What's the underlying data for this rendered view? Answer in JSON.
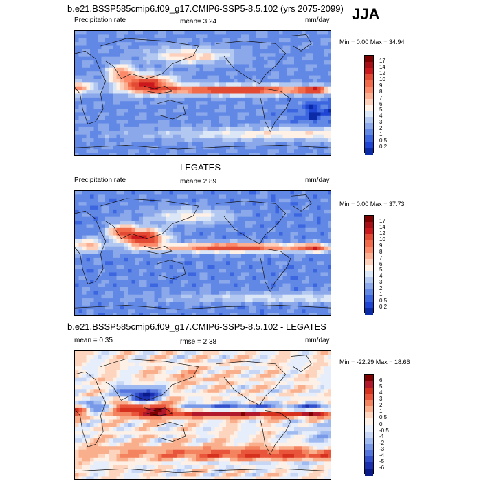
{
  "season": "JJA",
  "panels": [
    {
      "title": "b.e21.BSSP585cmip6.f09_g17.CMIP6-SSP5-8.5.102 (yrs 2075-2099)",
      "left_label": "Precipitation rate",
      "center_label": "mean=  3.24",
      "right_label": "mm/day",
      "minmax": "Min =   0.00 Max =  34.94",
      "colorbar": {
        "labels": [
          "17",
          "14",
          "12",
          "10",
          "9",
          "8",
          "7",
          "6",
          "5",
          "4",
          "3",
          "2",
          "1",
          "0.5",
          "0.2"
        ],
        "colors": [
          "#7f0000",
          "#a50f15",
          "#cb181d",
          "#e34a33",
          "#f16a4a",
          "#fb8a6a",
          "#fcae91",
          "#fdd0bc",
          "#fff1e6",
          "#dbe6f7",
          "#b3c8f0",
          "#8aa8ea",
          "#6288e6",
          "#3c66e0",
          "#1f45d4",
          "#0a2aa8"
        ]
      },
      "field": "precip_model"
    },
    {
      "title": "LEGATES",
      "left_label": "Precipitation rate",
      "center_label": "mean=  2.89",
      "right_label": "mm/day",
      "minmax": "Min =   0.00 Max =  37.73",
      "colorbar": {
        "labels": [
          "17",
          "14",
          "12",
          "10",
          "9",
          "8",
          "7",
          "6",
          "5",
          "4",
          "3",
          "2",
          "1",
          "0.5",
          "0.2"
        ],
        "colors": [
          "#7f0000",
          "#a50f15",
          "#cb181d",
          "#e34a33",
          "#f16a4a",
          "#fb8a6a",
          "#fcae91",
          "#fdd0bc",
          "#fff1e6",
          "#dbe6f7",
          "#b3c8f0",
          "#8aa8ea",
          "#6288e6",
          "#3c66e0",
          "#1f45d4",
          "#0a2aa8"
        ]
      },
      "field": "precip_obs"
    },
    {
      "title": "b.e21.BSSP585cmip6.f09_g17.CMIP6-SSP5-8.5.102 - LEGATES",
      "left_label": "mean =   0.35",
      "center_label": "rmse =  2.38",
      "right_label": "mm/day",
      "minmax": "Min = -22.29 Max =  18.66",
      "colorbar": {
        "labels": [
          "6",
          "5",
          "4",
          "3",
          "2",
          "1",
          "0.5",
          "0",
          "-0.5",
          "-1",
          "-2",
          "-3",
          "-4",
          "-5",
          "-6"
        ],
        "colors": [
          "#7f0000",
          "#b2182b",
          "#d6301f",
          "#e8553a",
          "#f4845f",
          "#f9ae8c",
          "#fdd5bf",
          "#fdf0e6",
          "#e6eefb",
          "#c6d6f4",
          "#9fbaf0",
          "#7898e8",
          "#5474de",
          "#3350cc",
          "#1a30b0",
          "#0a1a88"
        ]
      },
      "field": "precip_diff"
    }
  ],
  "chart_data": [
    {
      "type": "heatmap",
      "title": "b.e21.BSSP585cmip6.f09_g17.CMIP6-SSP5-8.5.102 (yrs 2075-2099)",
      "variable": "Precipitation rate",
      "units": "mm/day",
      "season": "JJA",
      "mean": 3.24,
      "min": 0.0,
      "max": 34.94,
      "levels": [
        0.2,
        0.5,
        1,
        2,
        3,
        4,
        5,
        6,
        7,
        8,
        9,
        10,
        12,
        14,
        17
      ]
    },
    {
      "type": "heatmap",
      "title": "LEGATES",
      "variable": "Precipitation rate",
      "units": "mm/day",
      "mean": 2.89,
      "min": 0.0,
      "max": 37.73,
      "levels": [
        0.2,
        0.5,
        1,
        2,
        3,
        4,
        5,
        6,
        7,
        8,
        9,
        10,
        12,
        14,
        17
      ]
    },
    {
      "type": "heatmap",
      "title": "b.e21.BSSP585cmip6.f09_g17.CMIP6-SSP5-8.5.102 - LEGATES",
      "units": "mm/day",
      "mean": 0.35,
      "rmse": 2.38,
      "min": -22.29,
      "max": 18.66,
      "levels": [
        -6,
        -5,
        -4,
        -3,
        -2,
        -1,
        -0.5,
        0,
        0.5,
        1,
        2,
        3,
        4,
        5,
        6
      ]
    }
  ]
}
